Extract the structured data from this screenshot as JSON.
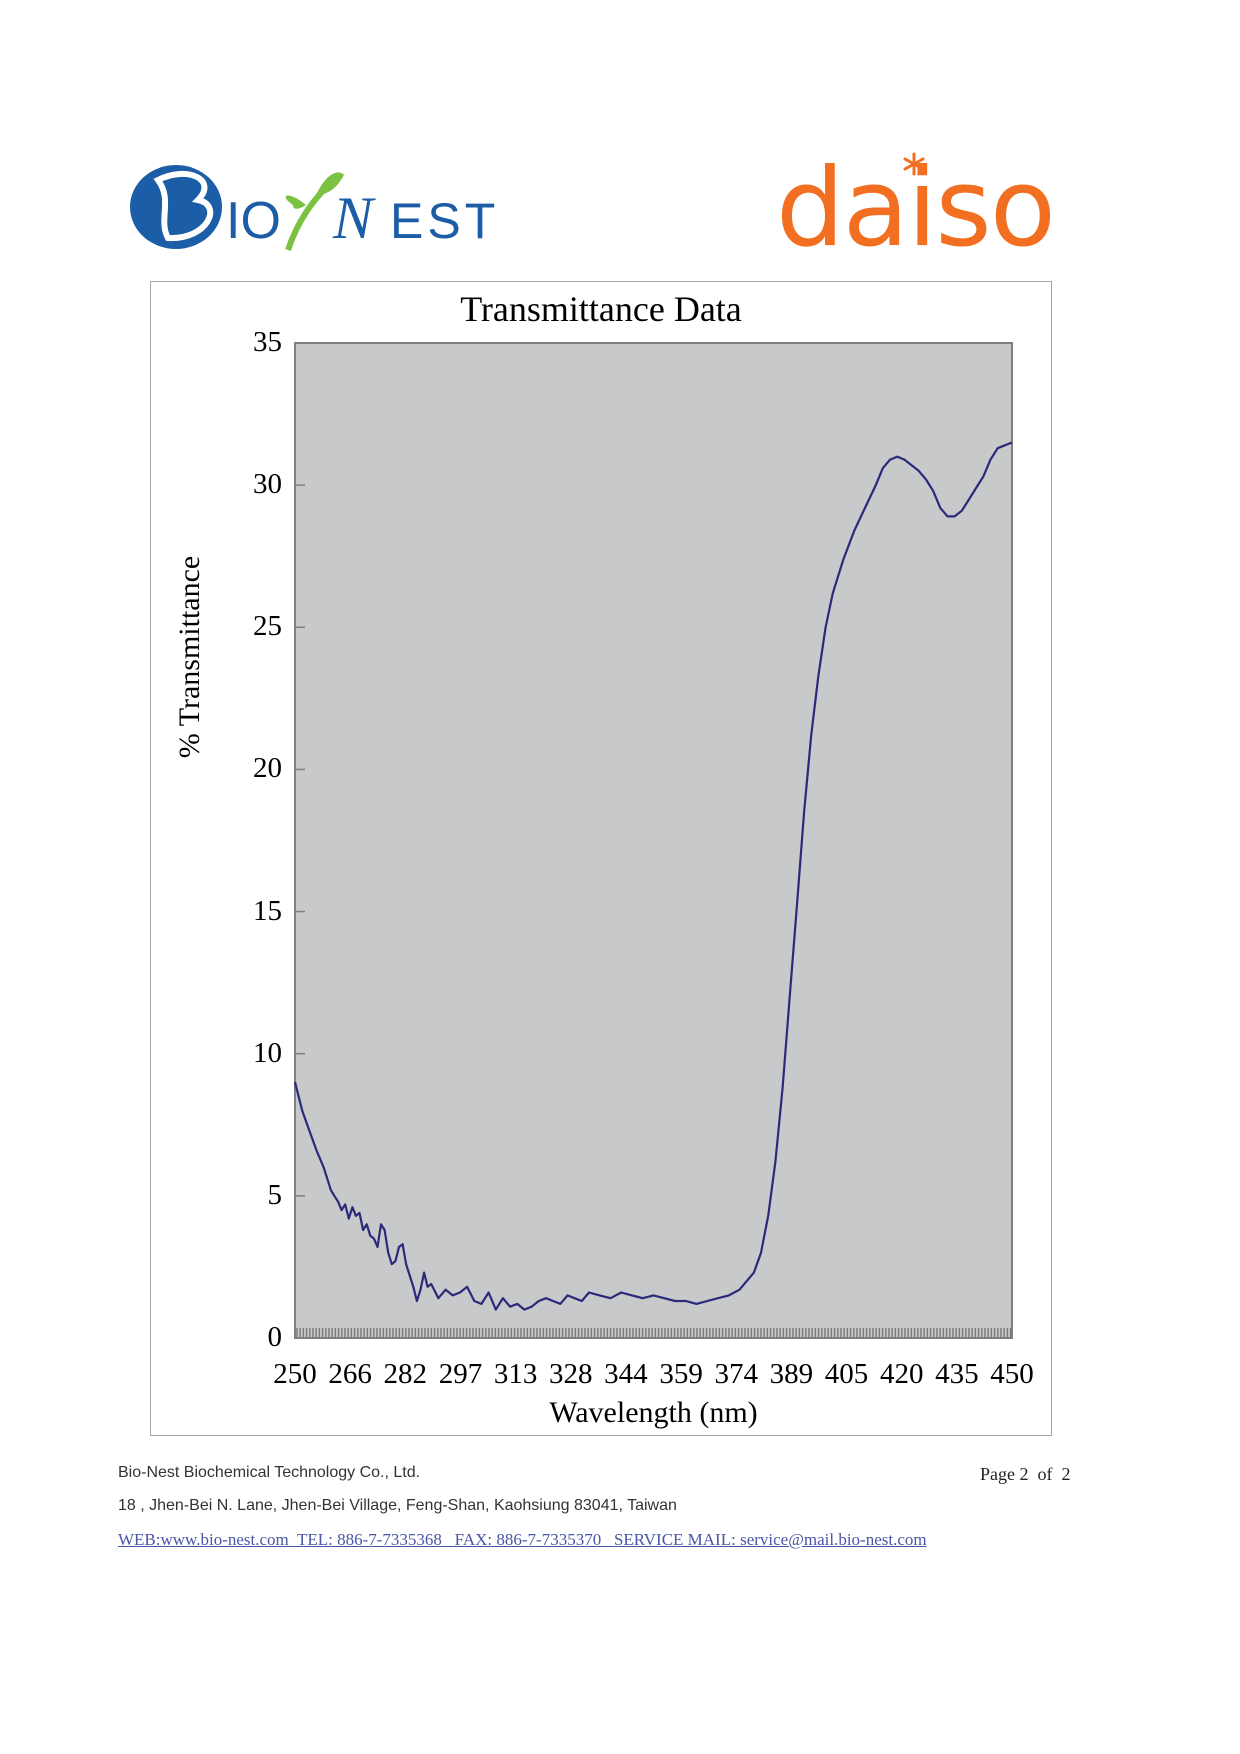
{
  "logos": {
    "left_text": "BIONEST",
    "right_text": "daiso"
  },
  "colors": {
    "bionest_blue": "#1b5da6",
    "bionest_green": "#7cc242",
    "daiso_orange": "#f26f21",
    "plot_bg": "#c8c9cb",
    "line": "#2a2a7a"
  },
  "chart_data": {
    "type": "line",
    "title": "Transmittance Data",
    "xlabel": "Wavelength (nm)",
    "ylabel": "% Transmittance",
    "xlim": [
      250,
      450
    ],
    "ylim": [
      0,
      35
    ],
    "grid": false,
    "xticks": [
      "250",
      "266",
      "282",
      "297",
      "313",
      "328",
      "344",
      "359",
      "374",
      "389",
      "405",
      "420",
      "435",
      "450"
    ],
    "yticks": [
      "0",
      "5",
      "10",
      "15",
      "20",
      "25",
      "30",
      "35"
    ],
    "series": [
      {
        "name": "Transmittance",
        "x": [
          250,
          252,
          254,
          256,
          258,
          260,
          261,
          262,
          263,
          264,
          265,
          266,
          267,
          268,
          269,
          270,
          271,
          272,
          273,
          274,
          275,
          276,
          277,
          278,
          279,
          280,
          281,
          282,
          283,
          284,
          285,
          286,
          287,
          288,
          290,
          292,
          294,
          296,
          298,
          300,
          302,
          304,
          306,
          308,
          310,
          312,
          314,
          316,
          318,
          320,
          322,
          324,
          326,
          328,
          330,
          332,
          335,
          338,
          341,
          344,
          347,
          350,
          353,
          356,
          359,
          362,
          365,
          368,
          371,
          374,
          376,
          378,
          380,
          382,
          384,
          386,
          388,
          390,
          392,
          394,
          396,
          398,
          400,
          403,
          406,
          409,
          412,
          414,
          416,
          418,
          420,
          422,
          424,
          426,
          428,
          430,
          432,
          434,
          436,
          438,
          440,
          442,
          444,
          446,
          448,
          450
        ],
        "y": [
          9.0,
          8.0,
          7.3,
          6.6,
          6.0,
          5.2,
          5.0,
          4.8,
          4.5,
          4.7,
          4.2,
          4.6,
          4.3,
          4.4,
          3.8,
          4.0,
          3.6,
          3.5,
          3.2,
          4.0,
          3.8,
          3.0,
          2.6,
          2.7,
          3.2,
          3.3,
          2.6,
          2.2,
          1.8,
          1.3,
          1.7,
          2.3,
          1.8,
          1.9,
          1.4,
          1.7,
          1.5,
          1.6,
          1.8,
          1.3,
          1.2,
          1.6,
          1.0,
          1.4,
          1.1,
          1.2,
          1.0,
          1.1,
          1.3,
          1.4,
          1.3,
          1.2,
          1.5,
          1.4,
          1.3,
          1.6,
          1.5,
          1.4,
          1.6,
          1.5,
          1.4,
          1.5,
          1.4,
          1.3,
          1.3,
          1.2,
          1.3,
          1.4,
          1.5,
          1.7,
          2.0,
          2.3,
          3.0,
          4.3,
          6.2,
          8.8,
          12.0,
          15.2,
          18.5,
          21.2,
          23.3,
          25.0,
          26.2,
          27.4,
          28.4,
          29.2,
          30.0,
          30.6,
          30.9,
          31.0,
          30.9,
          30.7,
          30.5,
          30.2,
          29.8,
          29.2,
          28.9,
          28.9,
          29.1,
          29.5,
          29.9,
          30.3,
          30.9,
          31.3,
          31.4,
          31.5
        ]
      }
    ]
  },
  "footer": {
    "company": "Bio-Nest Biochemical Technology Co., Ltd.",
    "address": "18 , Jhen-Bei N. Lane, Jhen-Bei Village, Feng-Shan, Kaohsiung 83041, Taiwan",
    "links": "WEB:www.bio-nest.com  TEL: 886-7-7335368   FAX: 886-7-7335370   SERVICE MAIL: service@mail.bio-nest.com",
    "page": "Page 2  of  2"
  }
}
